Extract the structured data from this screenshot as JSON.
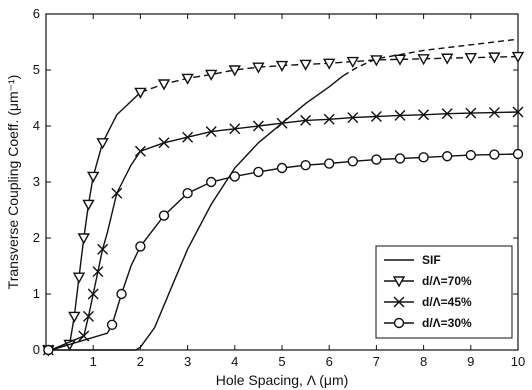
{
  "chart_data": {
    "type": "line",
    "title": "",
    "xlabel": "Hole Spacing, Λ (μm)",
    "ylabel": "Transverse Coupling Coeff. (μm⁻¹)",
    "xlim": [
      0,
      10
    ],
    "ylim": [
      0,
      6
    ],
    "x_ticks": [
      "1",
      "2",
      "3",
      "4",
      "5",
      "6",
      "7",
      "8",
      "9",
      "10"
    ],
    "y_ticks": [
      "0",
      "1",
      "2",
      "3",
      "4",
      "5",
      "6"
    ],
    "grid": false,
    "legend_position": "bottom-right",
    "series": [
      {
        "name": "SIF",
        "marker": "none",
        "x": [
          0,
          1.9,
          2.0,
          2.3,
          2.7,
          3.0,
          3.5,
          4.0,
          4.5,
          5.0,
          5.5,
          6.0,
          6.3,
          6.6,
          7.0,
          8.0,
          9.0,
          10.0
        ],
        "y": [
          0,
          0,
          0.05,
          0.4,
          1.2,
          1.8,
          2.6,
          3.25,
          3.7,
          4.05,
          4.4,
          4.7,
          4.9,
          5.05,
          5.2,
          5.35,
          5.45,
          5.55
        ]
      },
      {
        "name": "d/Λ=70%",
        "marker": "triangle-down",
        "x": [
          0,
          0.1,
          0.5,
          0.6,
          0.7,
          0.8,
          0.9,
          1.0,
          1.2,
          1.5,
          2.0,
          2.5,
          3.0,
          3.5,
          4.0,
          4.5,
          5.0,
          5.5,
          6.0,
          6.5,
          7.0,
          7.5,
          8.0,
          8.5,
          9.0,
          9.5,
          10.0
        ],
        "y": [
          0,
          0,
          0.1,
          0.6,
          1.3,
          2.0,
          2.6,
          3.1,
          3.7,
          4.2,
          4.6,
          4.75,
          4.85,
          4.92,
          5.0,
          5.05,
          5.08,
          5.1,
          5.12,
          5.15,
          5.18,
          5.19,
          5.2,
          5.21,
          5.22,
          5.23,
          5.24
        ]
      },
      {
        "name": "d/Λ=45%",
        "marker": "x",
        "x": [
          0,
          0.1,
          0.8,
          0.9,
          1.0,
          1.1,
          1.2,
          1.3,
          1.5,
          1.8,
          2.0,
          2.5,
          3.0,
          3.5,
          4.0,
          4.5,
          5.0,
          5.5,
          6.0,
          6.5,
          7.0,
          7.5,
          8.0,
          8.5,
          9.0,
          9.5,
          10.0
        ],
        "y": [
          0,
          0,
          0.25,
          0.6,
          1.0,
          1.4,
          1.8,
          2.1,
          2.8,
          3.3,
          3.55,
          3.7,
          3.8,
          3.9,
          3.95,
          4.0,
          4.05,
          4.1,
          4.12,
          4.15,
          4.17,
          4.19,
          4.2,
          4.22,
          4.23,
          4.24,
          4.25
        ]
      },
      {
        "name": "d/Λ=30%",
        "marker": "circle",
        "x": [
          0,
          0.1,
          1.3,
          1.4,
          1.6,
          1.8,
          2.0,
          2.5,
          3.0,
          3.5,
          4.0,
          4.5,
          5.0,
          5.5,
          6.0,
          6.5,
          7.0,
          7.5,
          8.0,
          8.5,
          9.0,
          9.5,
          10.0
        ],
        "y": [
          0,
          0,
          0.3,
          0.45,
          1.0,
          1.5,
          1.85,
          2.4,
          2.8,
          3.0,
          3.1,
          3.18,
          3.25,
          3.3,
          3.33,
          3.37,
          3.4,
          3.42,
          3.44,
          3.46,
          3.48,
          3.49,
          3.5
        ]
      }
    ]
  }
}
